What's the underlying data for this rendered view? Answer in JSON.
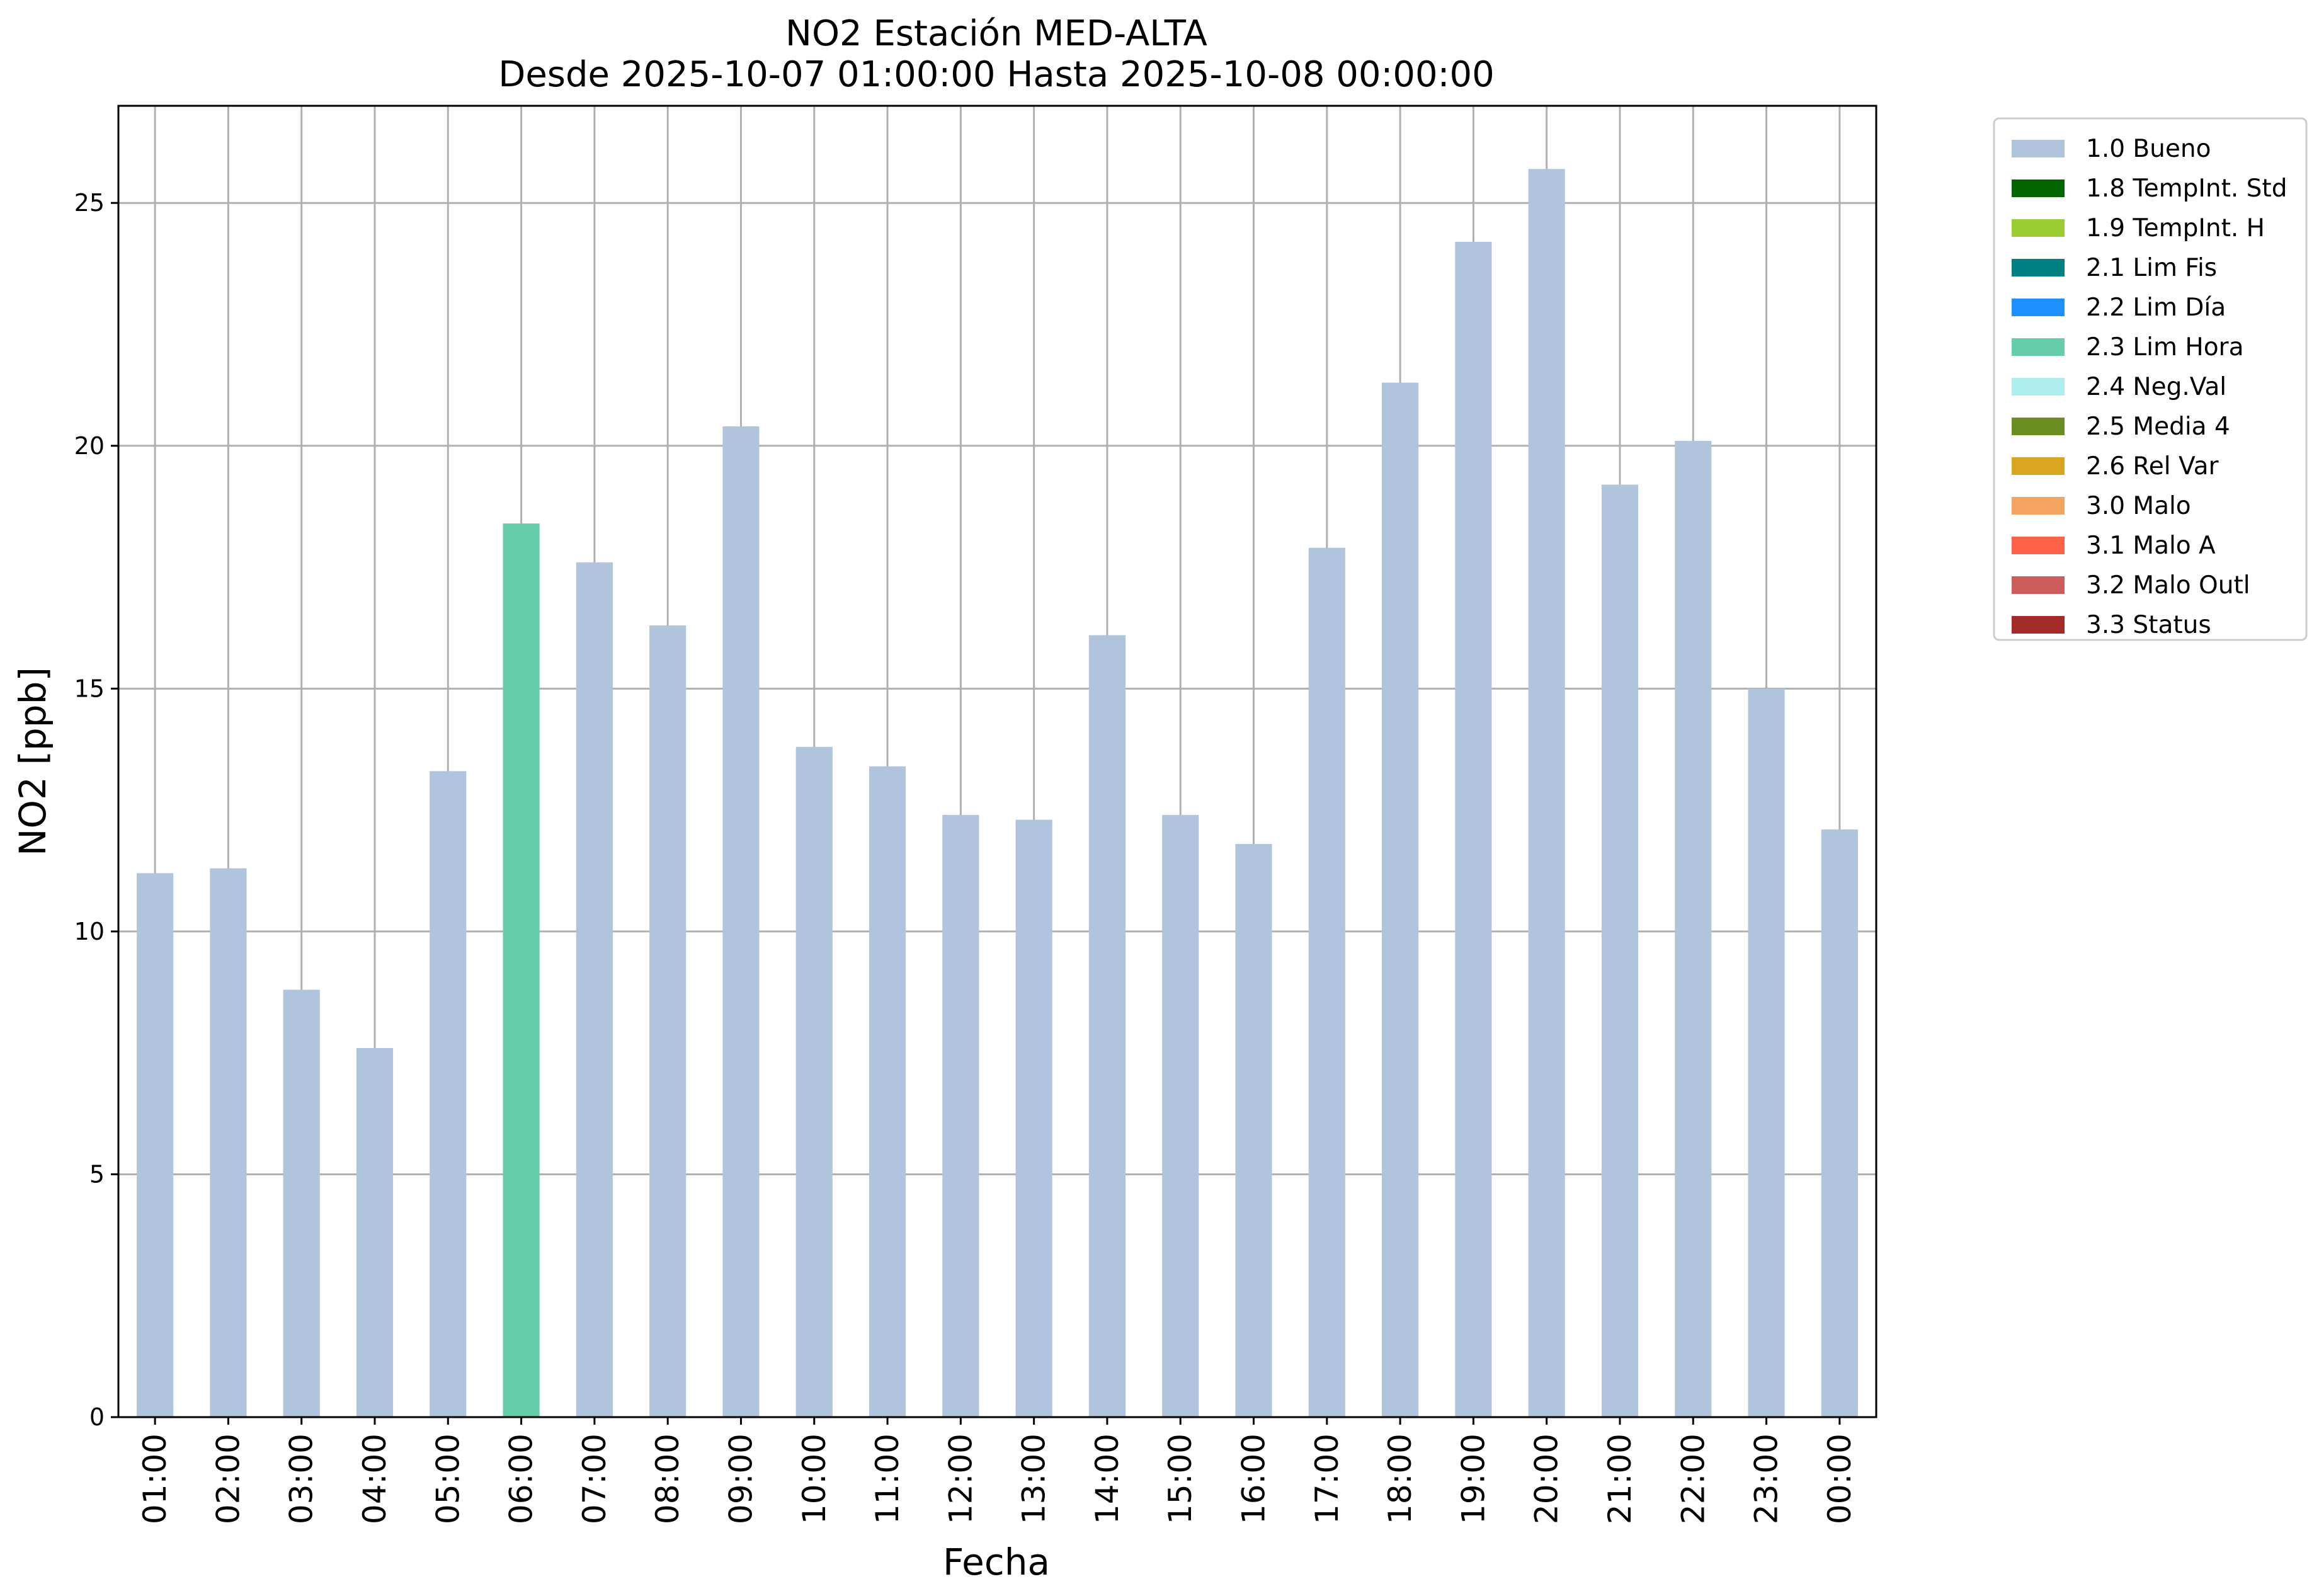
{
  "chart_data": {
    "type": "bar",
    "title": "NO2 Estación MED-ALTA",
    "subtitle": "Desde 2025-10-07 01:00:00 Hasta 2025-10-08 00:00:00",
    "xlabel": "Fecha",
    "ylabel": "NO2 [ppb]",
    "ylim": [
      0,
      27
    ],
    "yticks": [
      0,
      5,
      10,
      15,
      20,
      25
    ],
    "grid": true,
    "legend_position": "outside-top-right",
    "categories": [
      "01:00",
      "02:00",
      "03:00",
      "04:00",
      "05:00",
      "06:00",
      "07:00",
      "08:00",
      "09:00",
      "10:00",
      "11:00",
      "12:00",
      "13:00",
      "14:00",
      "15:00",
      "16:00",
      "17:00",
      "18:00",
      "19:00",
      "20:00",
      "21:00",
      "22:00",
      "23:00",
      "00:00"
    ],
    "values": [
      11.2,
      11.3,
      8.8,
      7.6,
      13.3,
      18.4,
      17.6,
      16.3,
      20.4,
      13.8,
      13.4,
      12.4,
      12.3,
      16.1,
      12.4,
      11.8,
      17.9,
      21.3,
      24.2,
      25.7,
      19.2,
      20.1,
      15.0,
      12.1
    ],
    "flags": [
      "1.0 Bueno",
      "1.0 Bueno",
      "1.0 Bueno",
      "1.0 Bueno",
      "1.0 Bueno",
      "2.3 Lim Hora",
      "1.0 Bueno",
      "1.0 Bueno",
      "1.0 Bueno",
      "1.0 Bueno",
      "1.0 Bueno",
      "1.0 Bueno",
      "1.0 Bueno",
      "1.0 Bueno",
      "1.0 Bueno",
      "1.0 Bueno",
      "1.0 Bueno",
      "1.0 Bueno",
      "1.0 Bueno",
      "1.0 Bueno",
      "1.0 Bueno",
      "1.0 Bueno",
      "1.0 Bueno",
      "1.0 Bueno"
    ],
    "legend": [
      {
        "label": "1.0 Bueno",
        "color": "#b0c4de"
      },
      {
        "label": "1.8 TempInt. Std",
        "color": "#006400"
      },
      {
        "label": "1.9 TempInt. H",
        "color": "#9acd32"
      },
      {
        "label": "2.1 Lim Fis",
        "color": "#008080"
      },
      {
        "label": "2.2 Lim Día",
        "color": "#1e90ff"
      },
      {
        "label": "2.3 Lim Hora",
        "color": "#66cdaa"
      },
      {
        "label": "2.4 Neg.Val",
        "color": "#afeeee"
      },
      {
        "label": "2.5 Media 4",
        "color": "#6b8e23"
      },
      {
        "label": "2.6 Rel Var",
        "color": "#daa520"
      },
      {
        "label": "3.0 Malo",
        "color": "#f4a460"
      },
      {
        "label": "3.1 Malo A",
        "color": "#ff6347"
      },
      {
        "label": "3.2 Malo Outl",
        "color": "#cd5c5c"
      },
      {
        "label": "3.3 Status",
        "color": "#a52a2a"
      }
    ]
  }
}
